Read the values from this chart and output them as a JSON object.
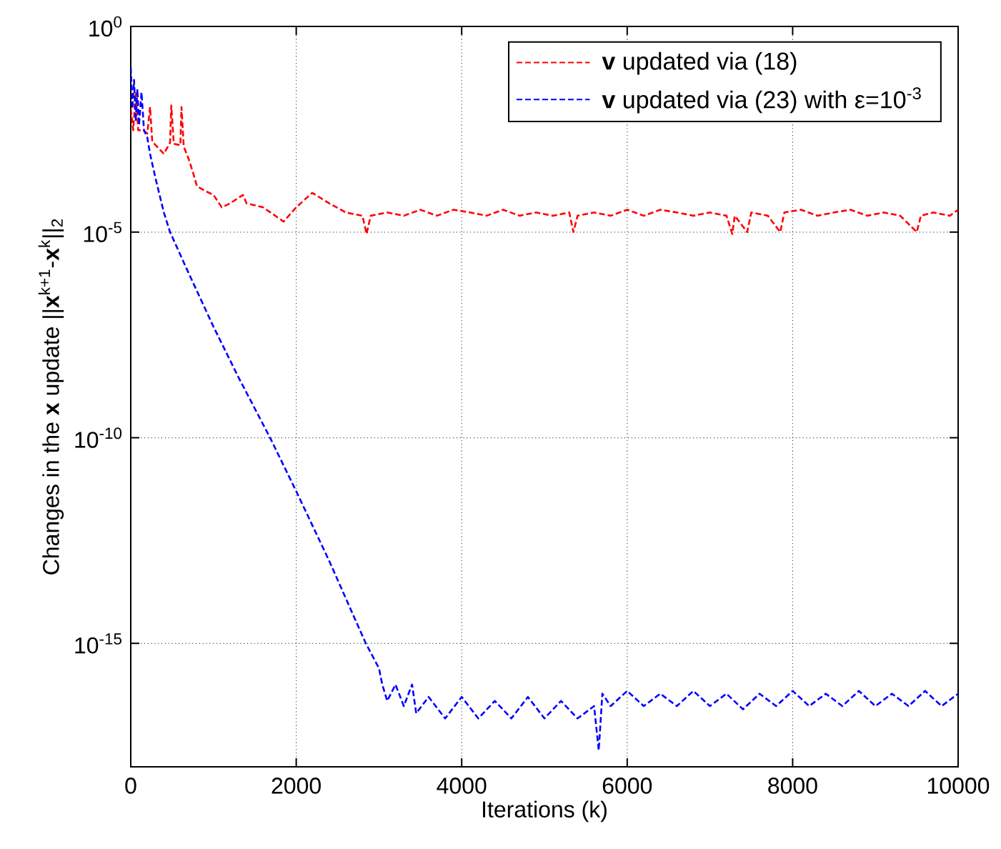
{
  "chart_data": {
    "type": "line",
    "xlabel": "Iterations (k)",
    "ylabel": "Changes in the **x** update ||**x**$^{k+1}$-**x**$^{k}$||$_{2}$",
    "log": "y",
    "grid": true,
    "legend": "top right",
    "marker": "none",
    "line_style": "dashed",
    "xlim": [
      0,
      10000
    ],
    "xticks": [
      0,
      2000,
      4000,
      6000,
      8000,
      10000
    ],
    "ylim": [
      1e-18,
      1
    ],
    "yticks": [
      {
        "value": 1e-15,
        "label": "10$^{-15}$"
      },
      {
        "value": 1e-10,
        "label": "10$^{-10}$"
      },
      {
        "value": 1e-05,
        "label": "10$^{-5}$"
      },
      {
        "value": 1,
        "label": "10$^{0}$"
      }
    ],
    "series": [
      {
        "name": "**v** updated via (18)",
        "color": "#ff0000",
        "x": [
          0,
          30,
          60,
          90,
          150,
          200,
          233,
          260,
          300,
          400,
          475,
          490,
          520,
          600,
          613,
          640,
          700,
          760,
          800,
          900,
          1000,
          1100,
          1200,
          1356,
          1400,
          1600,
          1848,
          2000,
          2193,
          2400,
          2600,
          2800,
          2850,
          2900,
          3100,
          3300,
          3500,
          3700,
          3900,
          4100,
          4300,
          4500,
          4700,
          4900,
          5100,
          5300,
          5350,
          5400,
          5600,
          5800,
          6000,
          6200,
          6400,
          6600,
          6800,
          7000,
          7200,
          7270,
          7300,
          7450,
          7500,
          7700,
          7850,
          7900,
          8100,
          8300,
          8500,
          8700,
          8900,
          9100,
          9300,
          9500,
          9550,
          9700,
          9900,
          10000
        ],
        "values": [
          0.01,
          0.003,
          0.025,
          0.003,
          0.003,
          0.0025,
          0.011,
          0.0016,
          0.0013,
          0.0008,
          0.0015,
          0.012,
          0.0014,
          0.0013,
          0.011,
          0.0012,
          0.0006,
          0.00025,
          0.00013,
          0.0001,
          8e-05,
          4e-05,
          5e-05,
          8e-05,
          5e-05,
          4e-05,
          1.8e-05,
          4e-05,
          9e-05,
          5e-05,
          3e-05,
          2.5e-05,
          9e-06,
          2.5e-05,
          3e-05,
          2.5e-05,
          3.5e-05,
          2.5e-05,
          3.5e-05,
          3e-05,
          2.5e-05,
          3.5e-05,
          2.5e-05,
          3e-05,
          2.5e-05,
          3e-05,
          1e-05,
          2.5e-05,
          3e-05,
          2.5e-05,
          3.5e-05,
          2.5e-05,
          3.5e-05,
          3e-05,
          2.5e-05,
          3e-05,
          2.5e-05,
          9e-06,
          2.5e-05,
          1e-05,
          3e-05,
          2.5e-05,
          1e-05,
          3e-05,
          3.5e-05,
          2.5e-05,
          3e-05,
          3.5e-05,
          2.5e-05,
          3e-05,
          2.5e-05,
          1e-05,
          2.5e-05,
          3e-05,
          2.5e-05,
          3.5e-05
        ]
      },
      {
        "name": "**v** updated via (23) with ε=10$^{-3}$",
        "color": "#0000ff",
        "x": [
          0,
          20,
          40,
          60,
          80,
          100,
          130,
          160,
          200,
          233,
          300,
          400,
          475,
          700,
          1000,
          1300,
          1684,
          2000,
          2400,
          2841,
          3000,
          3040,
          3100,
          3200,
          3300,
          3400,
          3450,
          3600,
          3800,
          4000,
          4200,
          4400,
          4600,
          4800,
          5000,
          5200,
          5400,
          5600,
          5656,
          5700,
          5800,
          6000,
          6200,
          6400,
          6600,
          6800,
          7000,
          7200,
          7400,
          7600,
          7800,
          8000,
          8200,
          8400,
          8600,
          8800,
          9000,
          9200,
          9400,
          9600,
          9800,
          10000
        ],
        "values": [
          0.1,
          0.01,
          0.05,
          0.005,
          0.03,
          0.004,
          0.025,
          0.003,
          0.002,
          0.0008,
          0.0002,
          3e-05,
          1e-05,
          1e-06,
          5e-08,
          3e-09,
          1e-10,
          5e-12,
          1e-13,
          1e-15,
          2.5e-16,
          1e-16,
          4e-17,
          1e-16,
          3e-17,
          1e-16,
          2e-17,
          5e-17,
          1.5e-17,
          5e-17,
          1.5e-17,
          4e-17,
          1.5e-17,
          5e-17,
          1.5e-17,
          4e-17,
          1.5e-17,
          3e-17,
          2.5e-18,
          6e-17,
          3e-17,
          7e-17,
          3e-17,
          6e-17,
          3e-17,
          7e-17,
          3e-17,
          6e-17,
          2.5e-17,
          6e-17,
          3e-17,
          7e-17,
          3e-17,
          6e-17,
          3e-17,
          7e-17,
          3e-17,
          6e-17,
          3e-17,
          7e-17,
          3e-17,
          6e-17
        ]
      }
    ]
  }
}
